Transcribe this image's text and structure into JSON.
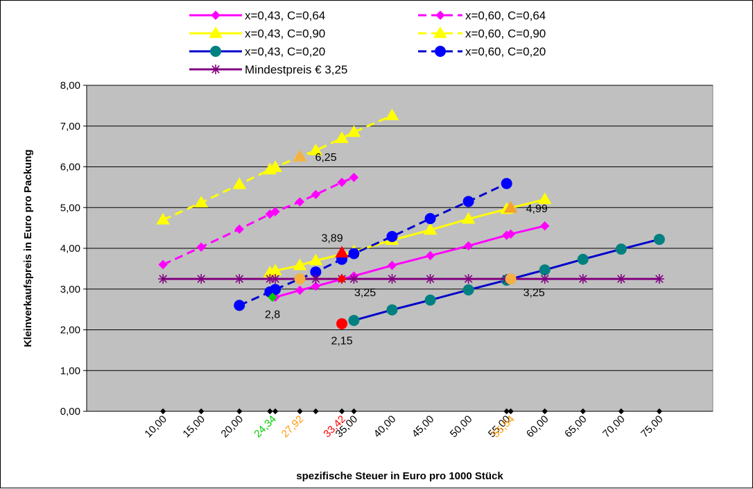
{
  "chart_data": {
    "type": "line",
    "title": "",
    "xlabel": "spezifische Steuer in Euro pro 1000 Stück",
    "ylabel": "Kleinverkaufspreis in Euro pro Packung",
    "xlim": [
      0,
      82
    ],
    "ylim": [
      0,
      8
    ],
    "grid": true,
    "plot_background": "#c0c0c0",
    "legend_position": "top",
    "y_ticks": [
      {
        "value": 0,
        "label": "0,00"
      },
      {
        "value": 1,
        "label": "1,00"
      },
      {
        "value": 2,
        "label": "2,00"
      },
      {
        "value": 3,
        "label": "3,00"
      },
      {
        "value": 4,
        "label": "4,00"
      },
      {
        "value": 5,
        "label": "5,00"
      },
      {
        "value": 6,
        "label": "6,00"
      },
      {
        "value": 7,
        "label": "7,00"
      },
      {
        "value": 8,
        "label": "8,00"
      }
    ],
    "x_ticks": [
      {
        "value": 10,
        "label": "10,00",
        "color": "#000000"
      },
      {
        "value": 15,
        "label": "15,00",
        "color": "#000000"
      },
      {
        "value": 20,
        "label": "20,00",
        "color": "#000000"
      },
      {
        "value": 24.34,
        "label": "24,34",
        "color": "#00cc00"
      },
      {
        "value": 27.92,
        "label": "27,92",
        "color": "#ff9900"
      },
      {
        "value": 33.42,
        "label": "33,42",
        "color": "#ff0000"
      },
      {
        "value": 35,
        "label": "35,00",
        "color": "#000000"
      },
      {
        "value": 40,
        "label": "40,00",
        "color": "#000000"
      },
      {
        "value": 45,
        "label": "45,00",
        "color": "#000000"
      },
      {
        "value": 50,
        "label": "50,00",
        "color": "#000000"
      },
      {
        "value": 55,
        "label": "55,00",
        "color": "#000000"
      },
      {
        "value": 55.54,
        "label": "55,54",
        "color": "#ff9900"
      },
      {
        "value": 60,
        "label": "60,00",
        "color": "#000000"
      },
      {
        "value": 65,
        "label": "65,00",
        "color": "#000000"
      },
      {
        "value": 70,
        "label": "70,00",
        "color": "#000000"
      },
      {
        "value": 75,
        "label": "75,00",
        "color": "#000000"
      }
    ],
    "axis_point_xs": [
      10,
      15,
      20,
      24.0,
      24.7,
      27.92,
      30,
      33.42,
      35,
      55.0,
      55.54,
      60,
      65,
      70,
      75
    ],
    "series": [
      {
        "name": "x=0,43, C=0,64",
        "color": "#ff00ff",
        "dash": false,
        "marker": "diamond",
        "x": [
          24.7,
          27.92,
          30,
          35,
          40,
          45,
          50,
          55,
          55.54,
          60
        ],
        "y": [
          2.8,
          2.97,
          3.07,
          3.32,
          3.58,
          3.82,
          4.06,
          4.32,
          4.35,
          4.55
        ]
      },
      {
        "name": "x=0,60, C=0,64",
        "color": "#ff00ff",
        "dash": true,
        "marker": "diamond",
        "x": [
          10,
          15,
          20,
          24.0,
          24.7,
          27.92,
          30,
          33.42,
          35
        ],
        "y": [
          3.6,
          4.03,
          4.47,
          4.84,
          4.9,
          5.14,
          5.32,
          5.62,
          5.74
        ]
      },
      {
        "name": "x=0,43, C=0,90",
        "color": "#ffff00",
        "dash": false,
        "marker": "triangle",
        "x": [
          24.0,
          24.7,
          27.92,
          30,
          35,
          40,
          45,
          50,
          55,
          55.54,
          60
        ],
        "y": [
          3.4,
          3.45,
          3.58,
          3.7,
          3.92,
          4.2,
          4.45,
          4.72,
          4.96,
          4.99,
          5.2
        ]
      },
      {
        "name": "x=0,60, C=0,90",
        "color": "#ffff00",
        "dash": true,
        "marker": "triangle",
        "x": [
          10,
          15,
          20,
          24.0,
          24.7,
          27.92,
          30,
          33.42,
          35,
          40
        ],
        "y": [
          4.7,
          5.12,
          5.57,
          5.93,
          5.99,
          6.25,
          6.4,
          6.7,
          6.85,
          7.26
        ]
      },
      {
        "name": "x=0,43, C=0,20",
        "color": "#0000cc",
        "dash": false,
        "marker": "circle",
        "marker_color": "#008080",
        "x": [
          35,
          40,
          45,
          50,
          55,
          60,
          65,
          70,
          75
        ],
        "y": [
          2.23,
          2.49,
          2.73,
          2.98,
          3.22,
          3.47,
          3.73,
          3.98,
          4.22
        ]
      },
      {
        "name": "x=0,60, C=0,20",
        "color": "#0000cc",
        "dash": true,
        "marker": "circle",
        "marker_color": "#0000ff",
        "x": [
          20,
          24.0,
          24.7,
          30,
          33.42,
          35,
          40,
          45,
          50,
          55
        ],
        "y": [
          2.6,
          2.93,
          2.99,
          3.42,
          3.73,
          3.87,
          4.29,
          4.73,
          5.15,
          5.59
        ]
      },
      {
        "name": "Mindestpreis € 3,25",
        "color": "#800080",
        "dash": false,
        "marker": "star",
        "x": [
          10,
          15,
          20,
          24.0,
          24.7,
          27.92,
          30,
          33.42,
          35,
          40,
          45,
          50,
          55,
          55.54,
          60,
          65,
          70,
          75
        ],
        "y": [
          3.25,
          3.25,
          3.25,
          3.25,
          3.25,
          3.25,
          3.25,
          3.25,
          3.25,
          3.25,
          3.25,
          3.25,
          3.25,
          3.25,
          3.25,
          3.25,
          3.25,
          3.25
        ]
      }
    ],
    "highlight_points": [
      {
        "x": 24.34,
        "y": 2.8,
        "shape": "diamond",
        "color": "#00cc00"
      },
      {
        "x": 27.92,
        "y": 3.25,
        "shape": "circle",
        "color": "#f5b041"
      },
      {
        "x": 27.92,
        "y": 6.25,
        "shape": "triangle",
        "color": "#f5b041"
      },
      {
        "x": 33.42,
        "y": 3.25,
        "shape": "diamond",
        "color": "#ff0000"
      },
      {
        "x": 33.42,
        "y": 3.89,
        "shape": "triangle",
        "color": "#ff0000"
      },
      {
        "x": 33.42,
        "y": 2.15,
        "shape": "circle",
        "color": "#ff0000"
      },
      {
        "x": 55.54,
        "y": 3.25,
        "shape": "circle",
        "color": "#f5b041"
      },
      {
        "x": 55.54,
        "y": 4.99,
        "shape": "triangle",
        "color": "#f5a030"
      }
    ],
    "annotations": [
      {
        "text": "2,8",
        "x": 24.34,
        "y": 2.8,
        "anchor": "below"
      },
      {
        "text": "6,25",
        "x": 27.92,
        "y": 6.25,
        "anchor": "right"
      },
      {
        "text": "3,89",
        "x": 33.42,
        "y": 3.89,
        "anchor": "above"
      },
      {
        "text": "3,25",
        "x": 33.42,
        "y": 3.25,
        "anchor": "below-right"
      },
      {
        "text": "2,15",
        "x": 33.42,
        "y": 2.15,
        "anchor": "below"
      },
      {
        "text": "4,99",
        "x": 55.54,
        "y": 4.99,
        "anchor": "right"
      },
      {
        "text": "3,25",
        "x": 55.54,
        "y": 3.25,
        "anchor": "below-right"
      }
    ]
  }
}
